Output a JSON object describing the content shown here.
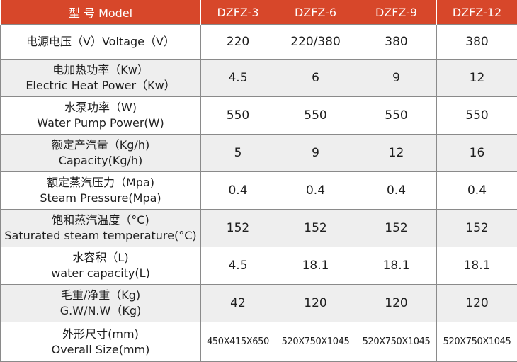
{
  "table": {
    "header": {
      "label": "型 号 Model",
      "models": [
        "DZFZ-3",
        "DZFZ-6",
        "DZFZ-9",
        "DZFZ-12"
      ]
    },
    "rows": [
      {
        "zh": "电源电压（V）Voltage（V）",
        "en": "",
        "values": [
          "220",
          "220/380",
          "380",
          "380"
        ]
      },
      {
        "zh": "电加热功率（Kw）",
        "en": "Electric Heat Power（Kw）",
        "values": [
          "4.5",
          "6",
          "9",
          "12"
        ]
      },
      {
        "zh": "水泵功率（W)",
        "en": "Water Pump Power(W)",
        "values": [
          "550",
          "550",
          "550",
          "550"
        ]
      },
      {
        "zh": "额定产汽量（Kg/h)",
        "en": "Capacity(Kg/h)",
        "values": [
          "5",
          "9",
          "12",
          "16"
        ]
      },
      {
        "zh": "额定蒸汽压力（Mpa)",
        "en": "Steam Pressure(Mpa)",
        "values": [
          "0.4",
          "0.4",
          "0.4",
          "0.4"
        ]
      },
      {
        "zh": "饱和蒸汽温度（°C)",
        "en": "Saturated steam temperature(°C)",
        "values": [
          "152",
          "152",
          "152",
          "152"
        ]
      },
      {
        "zh": "水容积（L)",
        "en": "water capacity(L)",
        "values": [
          "4.5",
          "18.1",
          "18.1",
          "18.1"
        ]
      },
      {
        "zh": "毛重/净重（Kg)",
        "en": "G.W/N.W（Kg)",
        "values": [
          "42",
          "120",
          "120",
          "120"
        ]
      },
      {
        "zh": "外形尺寸(mm)",
        "en": "Overall Size(mm)",
        "values": [
          "450X415X650",
          "520X750X1045",
          "520X750X1045",
          "520X750X1045"
        ]
      }
    ]
  },
  "colors": {
    "header_bg": "#d7472a",
    "header_text": "#ffffff",
    "shade_row": "#eeeeee",
    "border": "#8a8a8a"
  }
}
